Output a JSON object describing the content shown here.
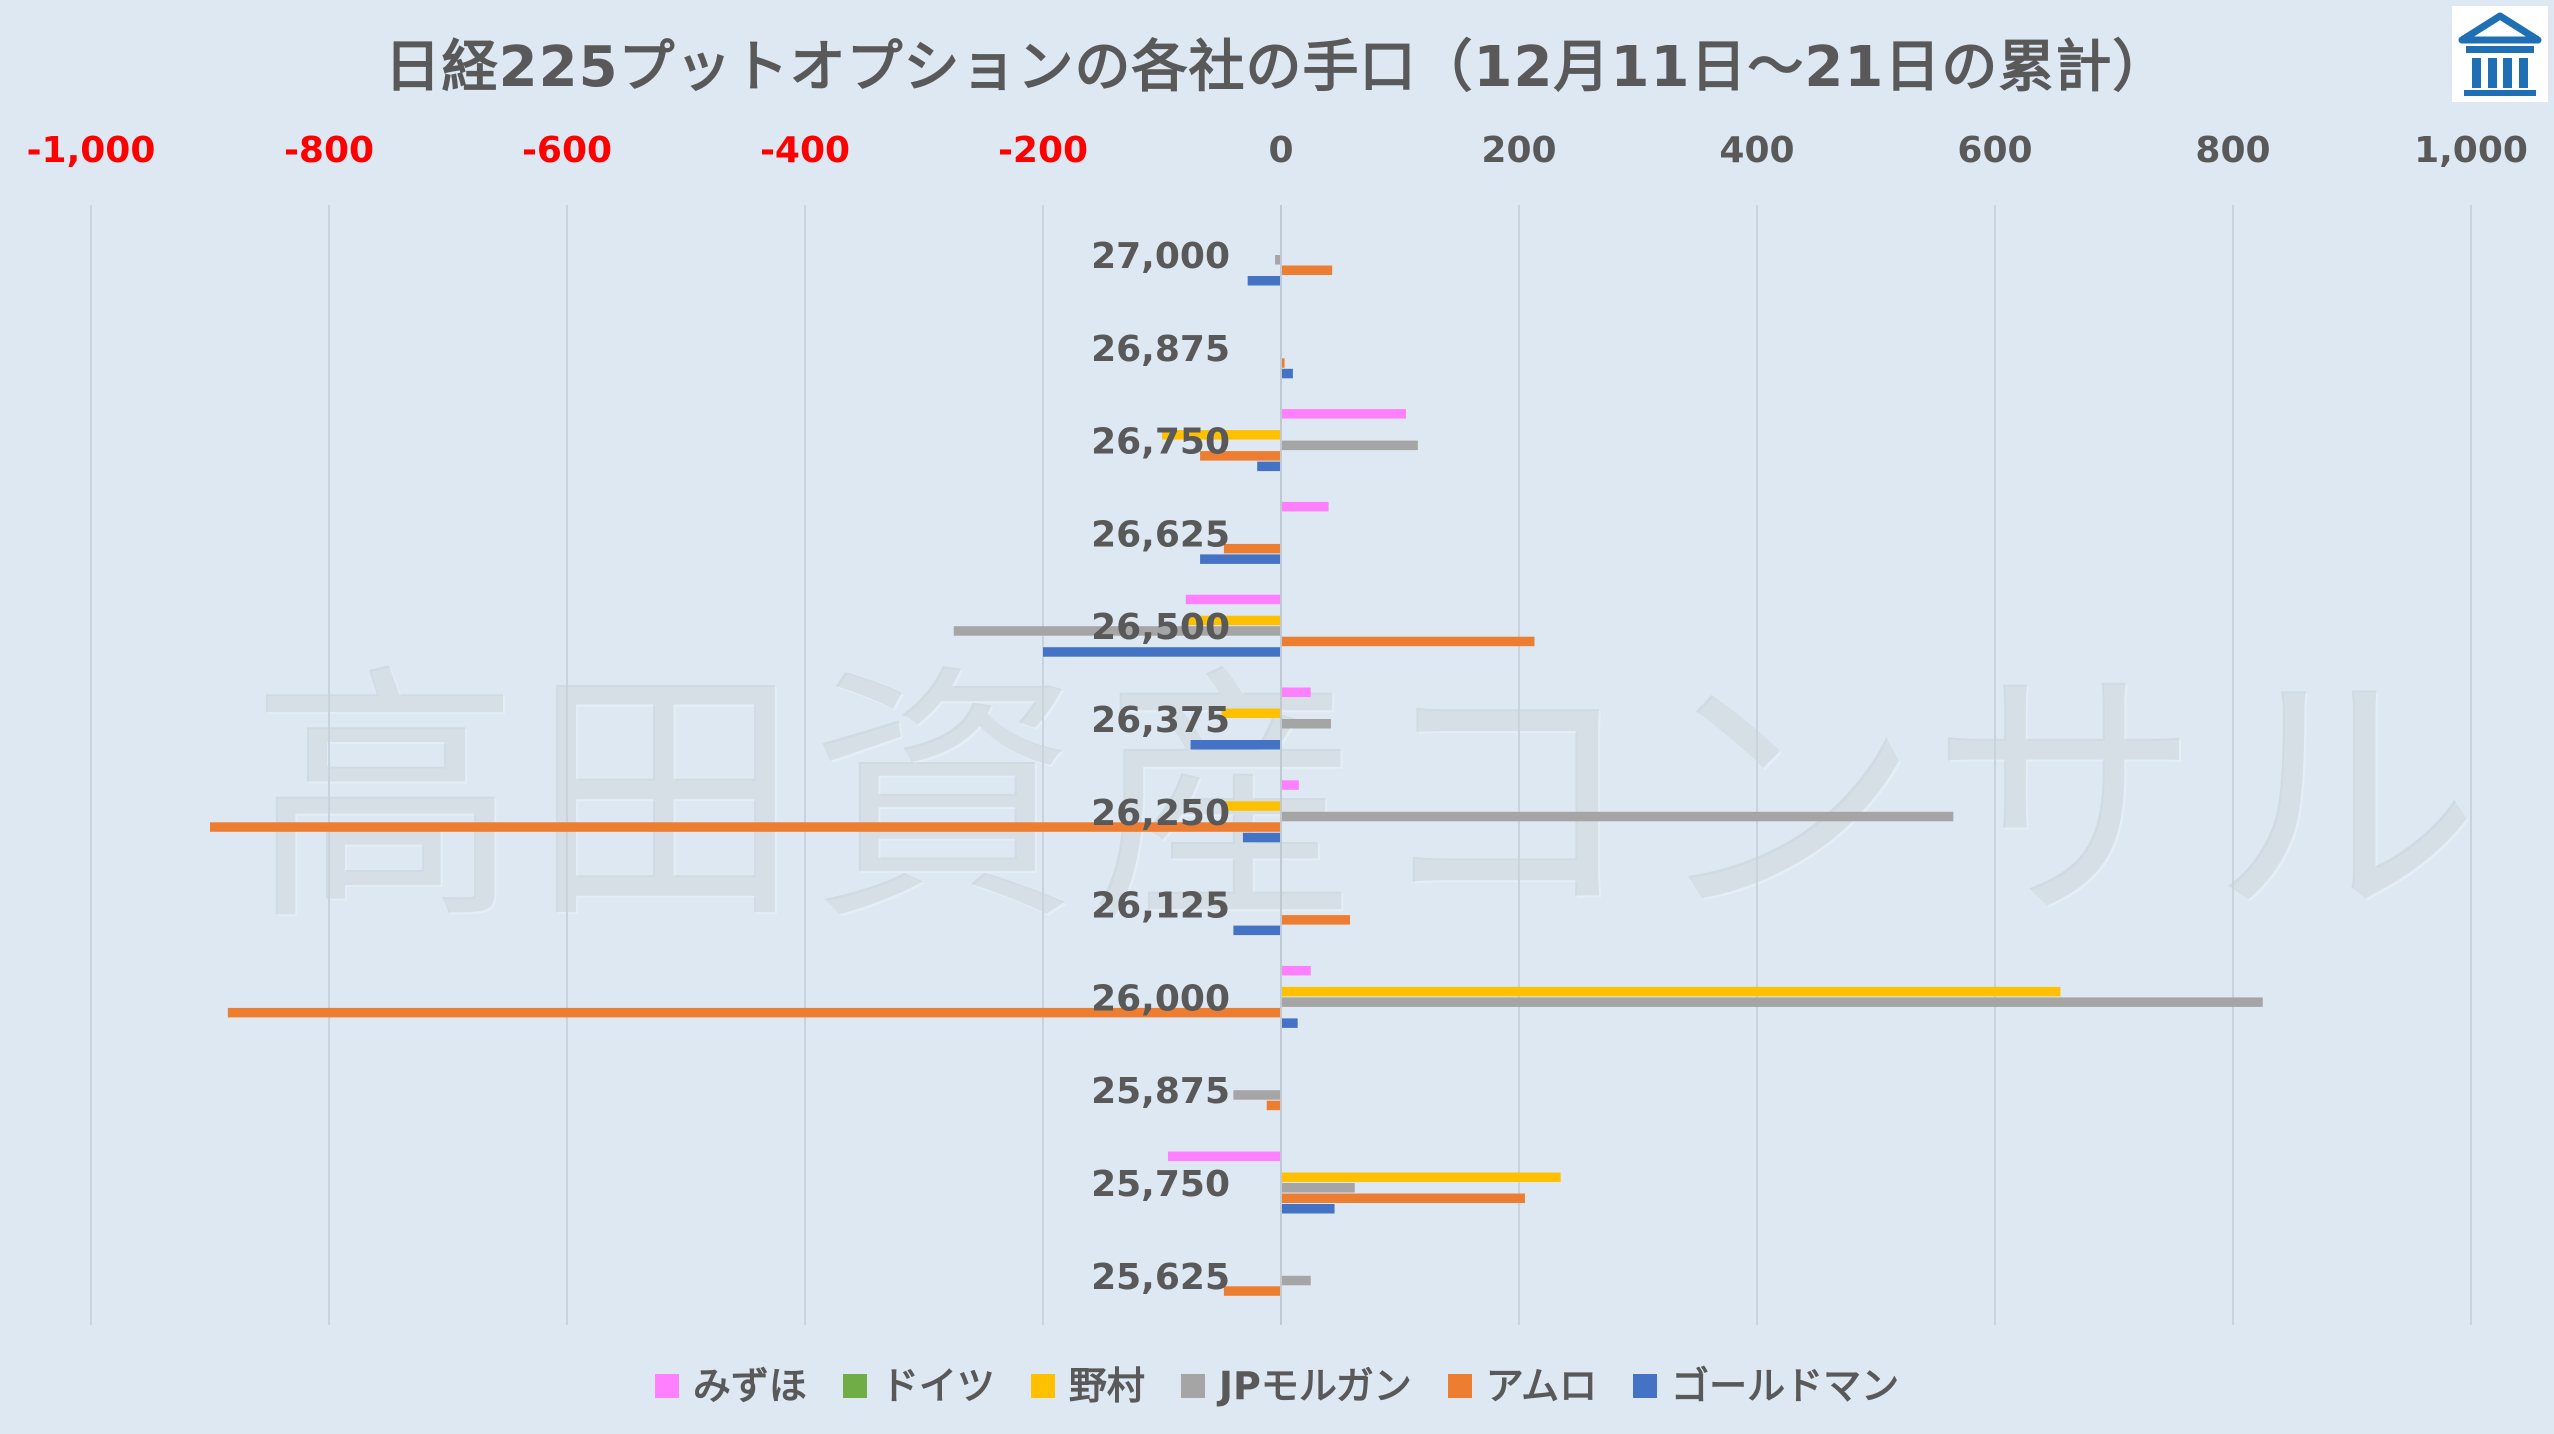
{
  "chart_data": {
    "type": "bar",
    "orientation": "horizontal",
    "title": "日経225プットオプションの各社の手口（12月11日～21日の累計）",
    "watermark": "高田資産コンサル",
    "xlim": [
      -1000,
      1000
    ],
    "x_ticks": [
      {
        "value": -1000,
        "label": "-1,000"
      },
      {
        "value": -800,
        "label": "-800"
      },
      {
        "value": -600,
        "label": "-600"
      },
      {
        "value": -400,
        "label": "-400"
      },
      {
        "value": -200,
        "label": "-200"
      },
      {
        "value": 0,
        "label": "0"
      },
      {
        "value": 200,
        "label": "200"
      },
      {
        "value": 400,
        "label": "400"
      },
      {
        "value": 600,
        "label": "600"
      },
      {
        "value": 800,
        "label": "800"
      },
      {
        "value": 1000,
        "label": "1,000"
      }
    ],
    "negative_tick_color": "#ff0000",
    "positive_tick_color": "#595959",
    "grid": true,
    "legend_position": "bottom",
    "categories": [
      "27,000",
      "26,875",
      "26,750",
      "26,625",
      "26,500",
      "26,375",
      "26,250",
      "26,125",
      "26,000",
      "25,875",
      "25,750",
      "25,625"
    ],
    "series": [
      {
        "name": "みずほ",
        "color": "#ff80ff",
        "values": [
          0,
          0,
          105,
          40,
          -80,
          25,
          15,
          0,
          25,
          0,
          -95,
          0
        ]
      },
      {
        "name": "ドイツ",
        "color": "#70ad47",
        "values": [
          0,
          0,
          0,
          0,
          0,
          0,
          0,
          0,
          0,
          0,
          0,
          0
        ]
      },
      {
        "name": "野村",
        "color": "#ffc000",
        "values": [
          0,
          0,
          -100,
          0,
          -80,
          -50,
          -50,
          0,
          655,
          0,
          235,
          0
        ]
      },
      {
        "name": "JPモルガン",
        "color": "#a5a5a5",
        "values": [
          -5,
          0,
          115,
          0,
          -275,
          42,
          565,
          0,
          825,
          -40,
          62,
          25
        ]
      },
      {
        "name": "アムロ",
        "color": "#ed7d31",
        "values": [
          43,
          3,
          -68,
          -48,
          213,
          0,
          -900,
          58,
          -885,
          -12,
          205,
          -48
        ]
      },
      {
        "name": "ゴールドマン",
        "color": "#4472c4",
        "values": [
          -28,
          10,
          -20,
          -68,
          -200,
          -76,
          -32,
          -40,
          14,
          0,
          45,
          0
        ]
      }
    ]
  }
}
